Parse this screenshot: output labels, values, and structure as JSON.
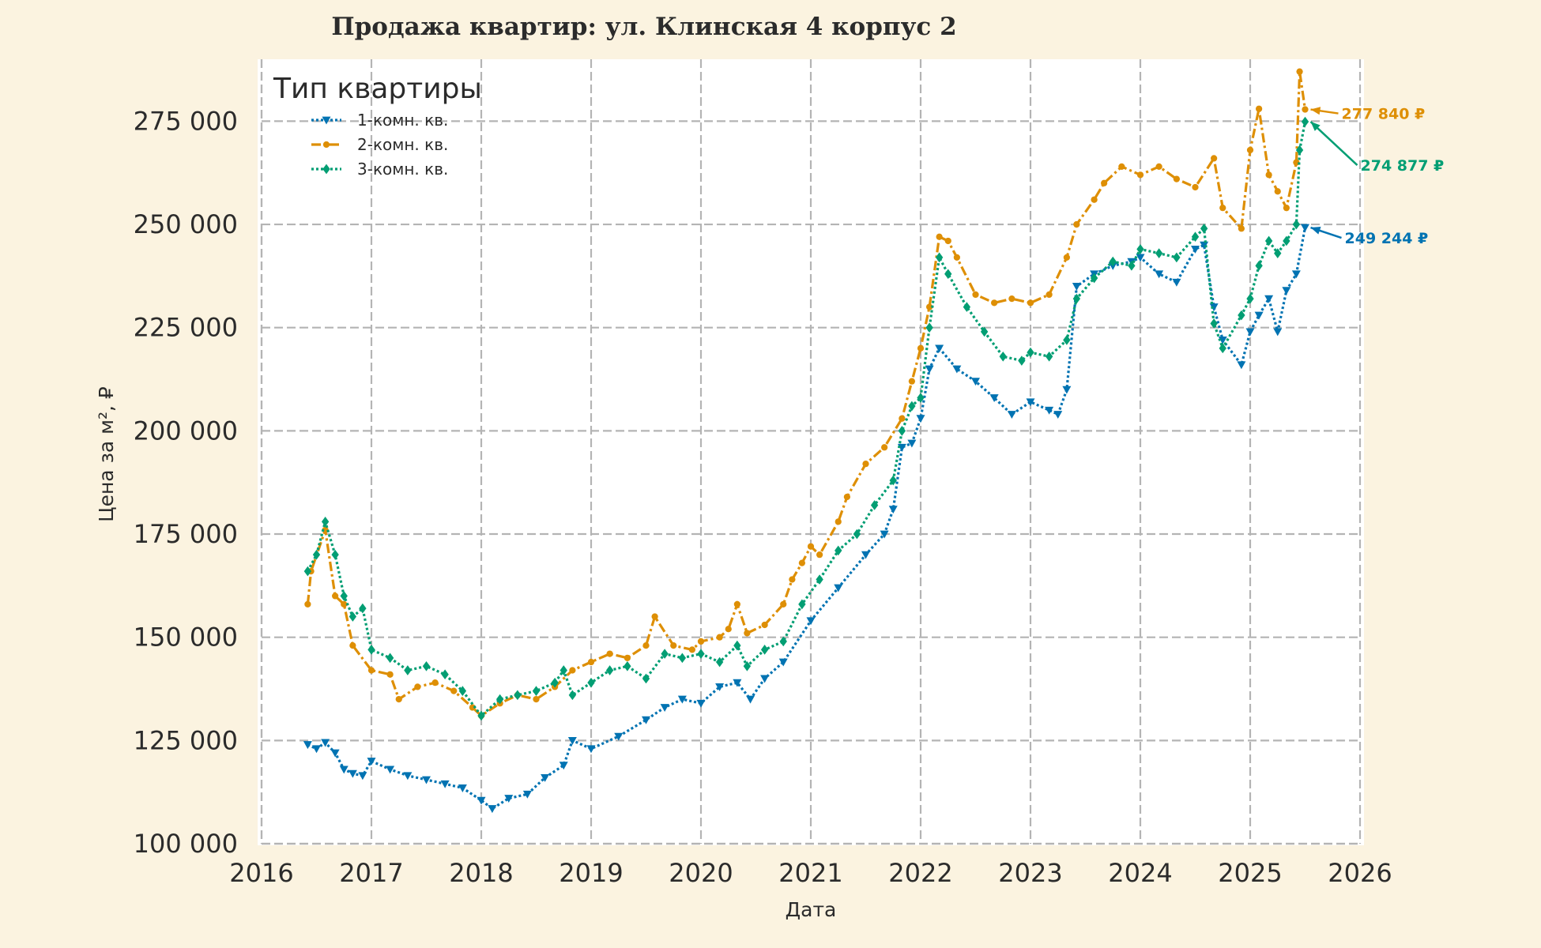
{
  "chart_data": {
    "type": "line",
    "title": "Продажа квартир: ул. Клинская 4 корпус 2",
    "xlabel": "Дата",
    "ylabel": "Цена за м², ₽",
    "xlim": [
      2016,
      2026
    ],
    "ylim": [
      100000,
      290000
    ],
    "x_ticks": [
      "2016",
      "2017",
      "2018",
      "2019",
      "2020",
      "2021",
      "2022",
      "2023",
      "2024",
      "2025",
      "2026"
    ],
    "y_ticks": [
      "100 000",
      "125 000",
      "150 000",
      "175 000",
      "200 000",
      "225 000",
      "250 000",
      "275 000"
    ],
    "y_tick_values": [
      100000,
      125000,
      150000,
      175000,
      200000,
      225000,
      250000,
      275000
    ],
    "grid": true,
    "legend_title": "Тип квартиры",
    "legend_position": "top-left",
    "series": [
      {
        "name": "1-комн. кв.",
        "color": "#0173b2",
        "marker": "triangle-down",
        "linestyle": "dotted",
        "points": [
          [
            2016.42,
            124000
          ],
          [
            2016.5,
            123000
          ],
          [
            2016.58,
            124500
          ],
          [
            2016.67,
            122000
          ],
          [
            2016.75,
            118000
          ],
          [
            2016.83,
            117000
          ],
          [
            2016.92,
            116500
          ],
          [
            2017.0,
            120000
          ],
          [
            2017.17,
            118000
          ],
          [
            2017.33,
            116500
          ],
          [
            2017.5,
            115500
          ],
          [
            2017.67,
            114500
          ],
          [
            2017.83,
            113500
          ],
          [
            2018.0,
            110500
          ],
          [
            2018.1,
            108500
          ],
          [
            2018.25,
            111000
          ],
          [
            2018.42,
            112000
          ],
          [
            2018.58,
            116000
          ],
          [
            2018.75,
            119000
          ],
          [
            2018.83,
            125000
          ],
          [
            2019.0,
            123000
          ],
          [
            2019.25,
            126000
          ],
          [
            2019.5,
            130000
          ],
          [
            2019.67,
            133000
          ],
          [
            2019.83,
            135000
          ],
          [
            2020.0,
            134000
          ],
          [
            2020.17,
            138000
          ],
          [
            2020.33,
            139000
          ],
          [
            2020.45,
            135000
          ],
          [
            2020.58,
            140000
          ],
          [
            2020.75,
            144000
          ],
          [
            2021.0,
            154000
          ],
          [
            2021.25,
            162000
          ],
          [
            2021.5,
            170000
          ],
          [
            2021.67,
            175000
          ],
          [
            2021.75,
            181000
          ],
          [
            2021.83,
            196000
          ],
          [
            2021.92,
            197000
          ],
          [
            2022.0,
            203000
          ],
          [
            2022.08,
            215000
          ],
          [
            2022.17,
            220000
          ],
          [
            2022.33,
            215000
          ],
          [
            2022.5,
            212000
          ],
          [
            2022.67,
            208000
          ],
          [
            2022.83,
            204000
          ],
          [
            2023.0,
            207000
          ],
          [
            2023.17,
            205000
          ],
          [
            2023.25,
            204000
          ],
          [
            2023.33,
            210000
          ],
          [
            2023.42,
            235000
          ],
          [
            2023.58,
            238000
          ],
          [
            2023.75,
            240000
          ],
          [
            2023.92,
            241000
          ],
          [
            2024.0,
            242000
          ],
          [
            2024.17,
            238000
          ],
          [
            2024.33,
            236000
          ],
          [
            2024.5,
            244000
          ],
          [
            2024.58,
            245000
          ],
          [
            2024.67,
            230000
          ],
          [
            2024.75,
            222000
          ],
          [
            2024.92,
            216000
          ],
          [
            2025.0,
            224000
          ],
          [
            2025.08,
            228000
          ],
          [
            2025.17,
            232000
          ],
          [
            2025.25,
            224000
          ],
          [
            2025.33,
            234000
          ],
          [
            2025.42,
            238000
          ],
          [
            2025.5,
            249244
          ]
        ]
      },
      {
        "name": "2-комн. кв.",
        "color": "#de8f05",
        "marker": "circle",
        "linestyle": "dashdot",
        "points": [
          [
            2016.42,
            158000
          ],
          [
            2016.45,
            166000
          ],
          [
            2016.58,
            176000
          ],
          [
            2016.67,
            160000
          ],
          [
            2016.75,
            158000
          ],
          [
            2016.83,
            148000
          ],
          [
            2017.0,
            142000
          ],
          [
            2017.17,
            141000
          ],
          [
            2017.25,
            135000
          ],
          [
            2017.42,
            138000
          ],
          [
            2017.58,
            139000
          ],
          [
            2017.75,
            137000
          ],
          [
            2017.92,
            133000
          ],
          [
            2018.0,
            131000
          ],
          [
            2018.17,
            134000
          ],
          [
            2018.33,
            136000
          ],
          [
            2018.5,
            135000
          ],
          [
            2018.67,
            138000
          ],
          [
            2018.83,
            142000
          ],
          [
            2019.0,
            144000
          ],
          [
            2019.17,
            146000
          ],
          [
            2019.33,
            145000
          ],
          [
            2019.5,
            148000
          ],
          [
            2019.58,
            155000
          ],
          [
            2019.75,
            148000
          ],
          [
            2019.92,
            147000
          ],
          [
            2020.0,
            149000
          ],
          [
            2020.17,
            150000
          ],
          [
            2020.25,
            152000
          ],
          [
            2020.33,
            158000
          ],
          [
            2020.42,
            151000
          ],
          [
            2020.58,
            153000
          ],
          [
            2020.75,
            158000
          ],
          [
            2020.83,
            164000
          ],
          [
            2020.92,
            168000
          ],
          [
            2021.0,
            172000
          ],
          [
            2021.08,
            170000
          ],
          [
            2021.25,
            178000
          ],
          [
            2021.33,
            184000
          ],
          [
            2021.5,
            192000
          ],
          [
            2021.67,
            196000
          ],
          [
            2021.83,
            203000
          ],
          [
            2021.92,
            212000
          ],
          [
            2022.0,
            220000
          ],
          [
            2022.08,
            230000
          ],
          [
            2022.17,
            247000
          ],
          [
            2022.25,
            246000
          ],
          [
            2022.33,
            242000
          ],
          [
            2022.5,
            233000
          ],
          [
            2022.67,
            231000
          ],
          [
            2022.83,
            232000
          ],
          [
            2023.0,
            231000
          ],
          [
            2023.17,
            233000
          ],
          [
            2023.33,
            242000
          ],
          [
            2023.42,
            250000
          ],
          [
            2023.58,
            256000
          ],
          [
            2023.67,
            260000
          ],
          [
            2023.83,
            264000
          ],
          [
            2024.0,
            262000
          ],
          [
            2024.17,
            264000
          ],
          [
            2024.33,
            261000
          ],
          [
            2024.5,
            259000
          ],
          [
            2024.67,
            266000
          ],
          [
            2024.75,
            254000
          ],
          [
            2024.92,
            249000
          ],
          [
            2025.0,
            268000
          ],
          [
            2025.08,
            278000
          ],
          [
            2025.17,
            262000
          ],
          [
            2025.25,
            258000
          ],
          [
            2025.33,
            254000
          ],
          [
            2025.42,
            265000
          ],
          [
            2025.45,
            287000
          ],
          [
            2025.5,
            277840
          ]
        ]
      },
      {
        "name": "3-комн. кв.",
        "color": "#029e73",
        "marker": "diamond",
        "linestyle": "dotted",
        "points": [
          [
            2016.42,
            166000
          ],
          [
            2016.5,
            170000
          ],
          [
            2016.58,
            178000
          ],
          [
            2016.67,
            170000
          ],
          [
            2016.75,
            160000
          ],
          [
            2016.83,
            155000
          ],
          [
            2016.92,
            157000
          ],
          [
            2017.0,
            147000
          ],
          [
            2017.17,
            145000
          ],
          [
            2017.33,
            142000
          ],
          [
            2017.5,
            143000
          ],
          [
            2017.67,
            141000
          ],
          [
            2017.83,
            137000
          ],
          [
            2018.0,
            131000
          ],
          [
            2018.17,
            135000
          ],
          [
            2018.33,
            136000
          ],
          [
            2018.5,
            137000
          ],
          [
            2018.67,
            139000
          ],
          [
            2018.75,
            142000
          ],
          [
            2018.83,
            136000
          ],
          [
            2019.0,
            139000
          ],
          [
            2019.17,
            142000
          ],
          [
            2019.33,
            143000
          ],
          [
            2019.5,
            140000
          ],
          [
            2019.67,
            146000
          ],
          [
            2019.83,
            145000
          ],
          [
            2020.0,
            146000
          ],
          [
            2020.17,
            144000
          ],
          [
            2020.33,
            148000
          ],
          [
            2020.42,
            143000
          ],
          [
            2020.58,
            147000
          ],
          [
            2020.75,
            149000
          ],
          [
            2020.92,
            158000
          ],
          [
            2021.08,
            164000
          ],
          [
            2021.25,
            171000
          ],
          [
            2021.42,
            175000
          ],
          [
            2021.58,
            182000
          ],
          [
            2021.75,
            188000
          ],
          [
            2021.83,
            200000
          ],
          [
            2021.92,
            206000
          ],
          [
            2022.0,
            208000
          ],
          [
            2022.08,
            225000
          ],
          [
            2022.17,
            242000
          ],
          [
            2022.25,
            238000
          ],
          [
            2022.42,
            230000
          ],
          [
            2022.58,
            224000
          ],
          [
            2022.75,
            218000
          ],
          [
            2022.92,
            217000
          ],
          [
            2023.0,
            219000
          ],
          [
            2023.17,
            218000
          ],
          [
            2023.33,
            222000
          ],
          [
            2023.42,
            232000
          ],
          [
            2023.58,
            237000
          ],
          [
            2023.75,
            241000
          ],
          [
            2023.92,
            240000
          ],
          [
            2024.0,
            244000
          ],
          [
            2024.17,
            243000
          ],
          [
            2024.33,
            242000
          ],
          [
            2024.5,
            247000
          ],
          [
            2024.58,
            249000
          ],
          [
            2024.67,
            226000
          ],
          [
            2024.75,
            220000
          ],
          [
            2024.92,
            228000
          ],
          [
            2025.0,
            232000
          ],
          [
            2025.08,
            240000
          ],
          [
            2025.17,
            246000
          ],
          [
            2025.25,
            243000
          ],
          [
            2025.33,
            246000
          ],
          [
            2025.42,
            250000
          ],
          [
            2025.45,
            268000
          ],
          [
            2025.5,
            274877
          ]
        ]
      }
    ],
    "annotations": [
      {
        "text": "277 840 ₽",
        "series": "2-комн. кв."
      },
      {
        "text": "274 877 ₽",
        "series": "3-комн. кв."
      },
      {
        "text": "249 244 ₽",
        "series": "1-комн. кв."
      }
    ]
  }
}
